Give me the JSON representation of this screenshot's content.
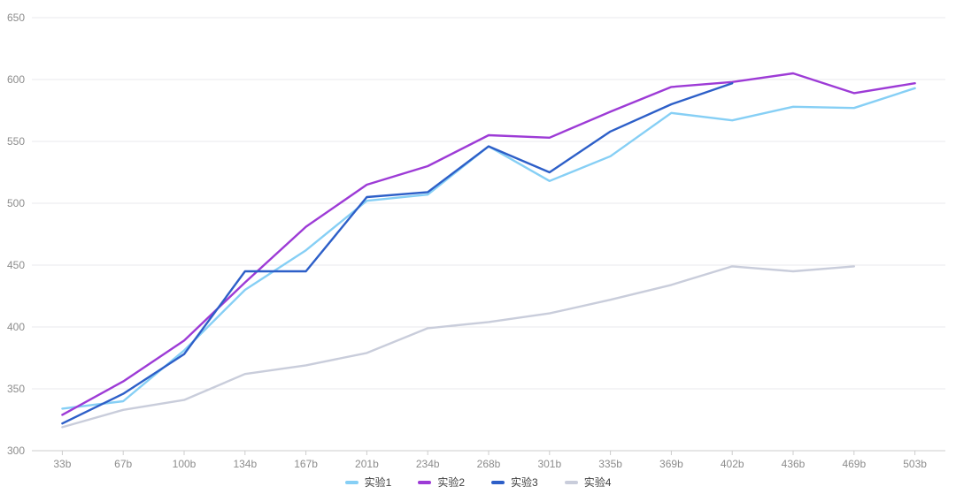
{
  "chart_data": {
    "type": "line",
    "title": "",
    "xlabel": "",
    "ylabel": "",
    "categories": [
      "33b",
      "67b",
      "100b",
      "134b",
      "167b",
      "201b",
      "234b",
      "268b",
      "301b",
      "335b",
      "369b",
      "402b",
      "436b",
      "469b",
      "503b"
    ],
    "series": [
      {
        "name": "实验1",
        "color": "#86CFF5",
        "values": [
          334,
          340,
          381,
          430,
          462,
          502,
          507,
          546,
          518,
          538,
          573,
          567,
          578,
          577,
          593
        ]
      },
      {
        "name": "实验2",
        "color": "#9D3BD6",
        "values": [
          329,
          356,
          389,
          436,
          481,
          515,
          530,
          555,
          553,
          574,
          594,
          598,
          605,
          589,
          597
        ]
      },
      {
        "name": "实验3",
        "color": "#2D5FC8",
        "values": [
          322,
          346,
          378,
          445,
          445,
          505,
          509,
          546,
          525,
          558,
          580,
          597
        ]
      },
      {
        "name": "实验4",
        "color": "#C9CDDB",
        "values": [
          319,
          333,
          341,
          362,
          369,
          379,
          399,
          404,
          411,
          422,
          434,
          449,
          445,
          449
        ]
      }
    ],
    "ylim": [
      300,
      650
    ],
    "y_interval": 50,
    "y_tick_labels": [
      "300",
      "350",
      "400",
      "450",
      "500",
      "550",
      "600",
      "650"
    ],
    "grid": true,
    "legend_position": "bottom"
  },
  "colors": {
    "background": "#FFFFFF",
    "gridline": "#E9E9EC",
    "axis_line": "#CCCCCC",
    "axis_tick": "#CCCCCC",
    "tick_label_text": "#8C8C8C",
    "legend_text": "#404040"
  }
}
